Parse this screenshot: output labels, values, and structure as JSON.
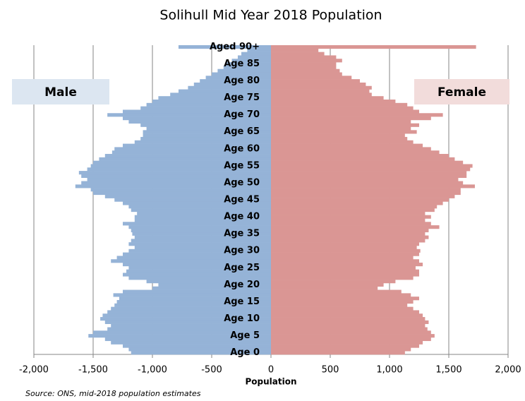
{
  "chart_data": {
    "type": "bar",
    "orientation": "horizontal",
    "title": "Solihull Mid Year 2018 Population",
    "x_label": "Population",
    "source": "Source: ONS, mid-2018 population estimates",
    "categories": [
      "Age 0",
      null,
      null,
      null,
      null,
      "Age 5",
      null,
      null,
      null,
      null,
      "Age 10",
      null,
      null,
      null,
      null,
      "Age 15",
      null,
      null,
      null,
      null,
      "Age 20",
      null,
      null,
      null,
      null,
      "Age 25",
      null,
      null,
      null,
      null,
      "Age 30",
      null,
      null,
      null,
      null,
      "Age 35",
      null,
      null,
      null,
      null,
      "Age 40",
      null,
      null,
      null,
      null,
      "Age 45",
      null,
      null,
      null,
      null,
      "Age 50",
      null,
      null,
      null,
      null,
      "Age 55",
      null,
      null,
      null,
      null,
      "Age 60",
      null,
      null,
      null,
      null,
      "Age 65",
      null,
      null,
      null,
      null,
      "Age 70",
      null,
      null,
      null,
      null,
      "Age 75",
      null,
      null,
      null,
      null,
      "Age 80",
      null,
      null,
      null,
      null,
      "Age 85",
      null,
      null,
      null,
      null,
      "Aged 90+"
    ],
    "series": [
      {
        "name": "Male",
        "color": "#95b3d7",
        "legend_fill": "#dce6f1",
        "values": [
          -1180,
          -1200,
          -1250,
          -1350,
          -1400,
          -1540,
          -1500,
          -1380,
          -1350,
          -1400,
          -1440,
          -1420,
          -1380,
          -1350,
          -1320,
          -1300,
          -1280,
          -1330,
          -1250,
          -1000,
          -950,
          -1050,
          -1200,
          -1250,
          -1220,
          -1200,
          -1250,
          -1350,
          -1300,
          -1250,
          -1200,
          -1150,
          -1200,
          -1180,
          -1150,
          -1170,
          -1180,
          -1200,
          -1250,
          -1150,
          -1150,
          -1130,
          -1180,
          -1200,
          -1250,
          -1320,
          -1400,
          -1500,
          -1520,
          -1650,
          -1600,
          -1550,
          -1600,
          -1620,
          -1550,
          -1520,
          -1500,
          -1450,
          -1400,
          -1340,
          -1320,
          -1250,
          -1150,
          -1100,
          -1080,
          -1080,
          -1050,
          -1100,
          -1200,
          -1250,
          -1380,
          -1250,
          -1100,
          -1050,
          -1000,
          -950,
          -850,
          -780,
          -700,
          -650,
          -600,
          -550,
          -500,
          -450,
          -400,
          -380,
          -330,
          -280,
          -250,
          -200,
          -780
        ]
      },
      {
        "name": "Female",
        "color": "#da9694",
        "legend_fill": "#f2dcdb",
        "values": [
          1130,
          1180,
          1250,
          1280,
          1350,
          1380,
          1350,
          1320,
          1300,
          1330,
          1300,
          1280,
          1250,
          1200,
          1150,
          1200,
          1250,
          1180,
          1100,
          900,
          950,
          1050,
          1200,
          1250,
          1250,
          1220,
          1280,
          1250,
          1200,
          1250,
          1260,
          1230,
          1250,
          1300,
          1330,
          1300,
          1330,
          1420,
          1350,
          1300,
          1350,
          1300,
          1380,
          1400,
          1450,
          1500,
          1550,
          1600,
          1600,
          1720,
          1620,
          1580,
          1650,
          1650,
          1680,
          1700,
          1620,
          1550,
          1500,
          1420,
          1350,
          1280,
          1200,
          1150,
          1130,
          1230,
          1180,
          1250,
          1180,
          1350,
          1450,
          1250,
          1200,
          1150,
          1050,
          950,
          850,
          830,
          850,
          800,
          750,
          680,
          600,
          580,
          550,
          550,
          600,
          550,
          450,
          400,
          1730
        ]
      }
    ],
    "xlim": [
      -2000,
      2000
    ],
    "xticks": [
      {
        "value": -2000,
        "label": "-2,000"
      },
      {
        "value": -1500,
        "label": "-1,500"
      },
      {
        "value": -1000,
        "label": "-1,000"
      },
      {
        "value": -500,
        "label": "-500"
      },
      0,
      500,
      {
        "value": 1000,
        "label": "1,000"
      },
      {
        "value": 1500,
        "label": "1,500"
      },
      {
        "value": 2000,
        "label": "2,000"
      }
    ],
    "grid": true
  }
}
